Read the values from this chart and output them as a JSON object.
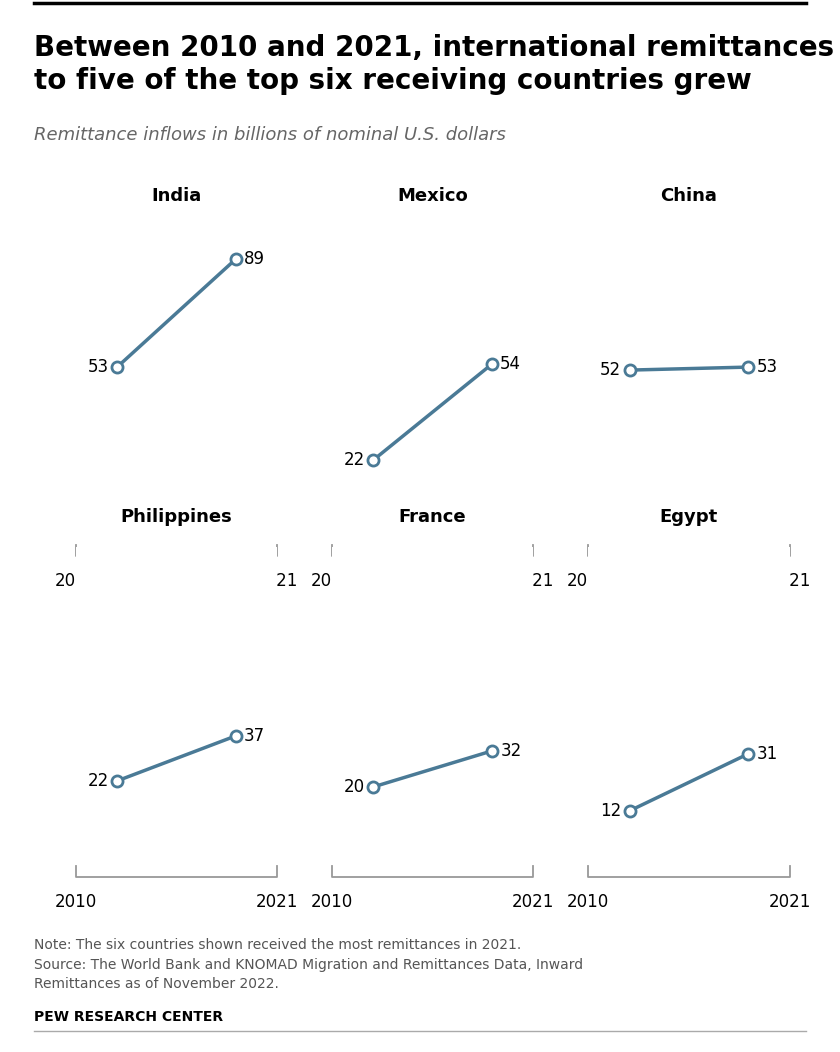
{
  "title": "Between 2010 and 2021, international remittances\nto five of the top six receiving countries grew",
  "subtitle": "Remittance inflows in billions of nominal U.S. dollars",
  "note": "Note: The six countries shown received the most remittances in 2021.\nSource: The World Bank and KNOMAD Migration and Remittances Data, Inward\nRemittances as of November 2022.",
  "source_bold": "PEW RESEARCH CENTER",
  "countries": [
    "India",
    "Mexico",
    "China",
    "Philippines",
    "France",
    "Egypt"
  ],
  "values_2010": [
    53,
    22,
    52,
    22,
    20,
    12
  ],
  "values_2021": [
    89,
    54,
    53,
    37,
    32,
    31
  ],
  "line_color": "#4a7a96",
  "marker_color": "#4a7a96",
  "marker_face_color": "#ffffff",
  "background_color": "#ffffff",
  "ymin": 0,
  "ymax": 100,
  "title_fontsize": 20,
  "subtitle_fontsize": 13,
  "country_fontsize": 13,
  "data_fontsize": 12,
  "axis_year_fontsize": 12,
  "note_fontsize": 10
}
